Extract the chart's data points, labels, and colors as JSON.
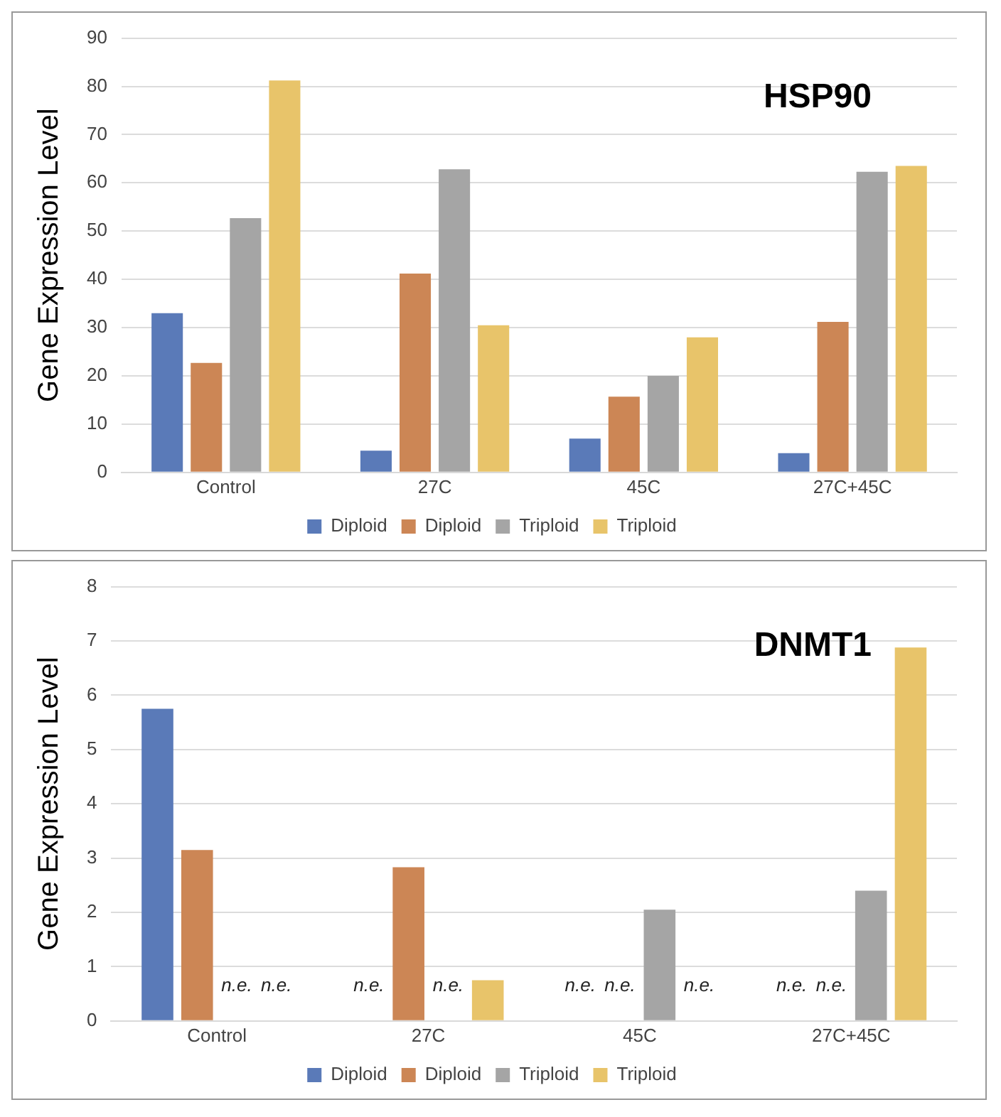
{
  "chart_data": [
    {
      "type": "bar",
      "title": "HSP90",
      "ylabel": "Gene Expression Level",
      "categories": [
        "Control",
        "27C",
        "45C",
        "27C+45C"
      ],
      "series": [
        {
          "name": "Diploid",
          "color": "#5a7ab8",
          "values": [
            33,
            4.5,
            7,
            4
          ]
        },
        {
          "name": "Diploid",
          "color": "#cc8655",
          "values": [
            22.7,
            41.2,
            15.7,
            31.2
          ]
        },
        {
          "name": "Triploid",
          "color": "#a5a5a5",
          "values": [
            52.7,
            62.8,
            20,
            62.3
          ]
        },
        {
          "name": "Triploid",
          "color": "#e8c46a",
          "values": [
            81.2,
            30.5,
            28,
            63.5
          ]
        }
      ],
      "ylim": [
        0,
        90
      ],
      "yticks": [
        0,
        10,
        20,
        30,
        40,
        50,
        60,
        70,
        80,
        90
      ],
      "grid": "y",
      "legend": "bottom"
    },
    {
      "type": "bar",
      "title": "DNMT1",
      "ylabel": "Gene Expression Level",
      "categories": [
        "Control",
        "27C",
        "45C",
        "27C+45C"
      ],
      "series": [
        {
          "name": "Diploid",
          "color": "#5a7ab8",
          "values": [
            5.75,
            null,
            null,
            null
          ],
          "value_labels": [
            null,
            "n.e.",
            "n.e.",
            "n.e."
          ]
        },
        {
          "name": "Diploid",
          "color": "#cc8655",
          "values": [
            3.15,
            2.83,
            null,
            null
          ],
          "value_labels": [
            null,
            null,
            "n.e.",
            "n.e."
          ]
        },
        {
          "name": "Triploid",
          "color": "#a5a5a5",
          "values": [
            null,
            null,
            2.05,
            2.4
          ],
          "value_labels": [
            "n.e.",
            "n.e.",
            null,
            null
          ]
        },
        {
          "name": "Triploid",
          "color": "#e8c46a",
          "values": [
            null,
            0.75,
            null,
            6.88
          ],
          "value_labels": [
            "n.e.",
            null,
            "n.e.",
            null
          ]
        }
      ],
      "ylim": [
        0,
        8
      ],
      "yticks": [
        0,
        1,
        2,
        3,
        4,
        5,
        6,
        7,
        8
      ],
      "grid": "y",
      "legend": "bottom"
    }
  ]
}
